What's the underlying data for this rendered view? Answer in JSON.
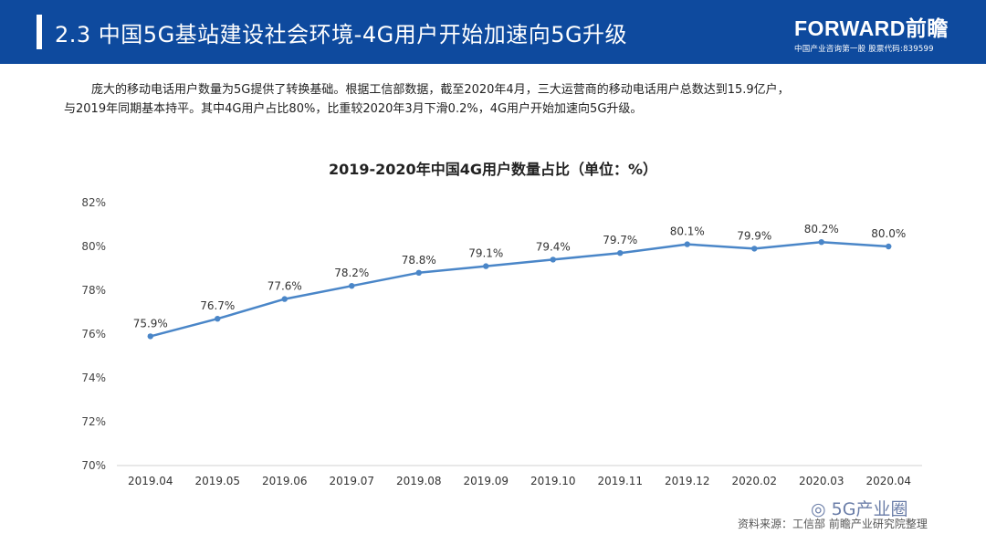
{
  "header": {
    "title": "2.3 中国5G基站建设社会环境-4G用户开始加速向5G升级",
    "brand_name": "FORWARD前瞻",
    "brand_sub": "中国产业咨询第一股 股票代码:839599",
    "bg_color": "#0e4a9e"
  },
  "description": {
    "line1": "庞大的移动电话用户数量为5G提供了转换基础。根据工信部数据，截至2020年4月，三大运营商的移动电话用户总数达到15.9亿户，",
    "line2": "与2019年同期基本持平。其中4G用户占比80%，比重较2020年3月下滑0.2%，4G用户开始加速向5G升级。"
  },
  "chart_data": {
    "type": "line",
    "title": "2019-2020年中国4G用户数量占比（单位：%）",
    "categories": [
      "2019.04",
      "2019.05",
      "2019.06",
      "2019.07",
      "2019.08",
      "2019.09",
      "2019.10",
      "2019.11",
      "2019.12",
      "2020.02",
      "2020.03",
      "2020.04"
    ],
    "values": [
      75.9,
      76.7,
      77.6,
      78.2,
      78.8,
      79.1,
      79.4,
      79.7,
      80.1,
      79.9,
      80.2,
      80.0
    ],
    "data_labels": [
      "75.9%",
      "76.7%",
      "77.6%",
      "78.2%",
      "78.8%",
      "79.1%",
      "79.4%",
      "79.7%",
      "80.1%",
      "79.9%",
      "80.2%",
      "80.0%"
    ],
    "y_ticks": [
      70,
      72,
      74,
      76,
      78,
      80,
      82
    ],
    "y_tick_labels": [
      "70%",
      "72%",
      "74%",
      "76%",
      "78%",
      "80%",
      "82%"
    ],
    "ylim": [
      70,
      82
    ],
    "grid": false,
    "line_color": "#4a86c8"
  },
  "source_text": "资料来源：工信部 前瞻产业研究院整理",
  "wechat_label": "5G产业圈"
}
